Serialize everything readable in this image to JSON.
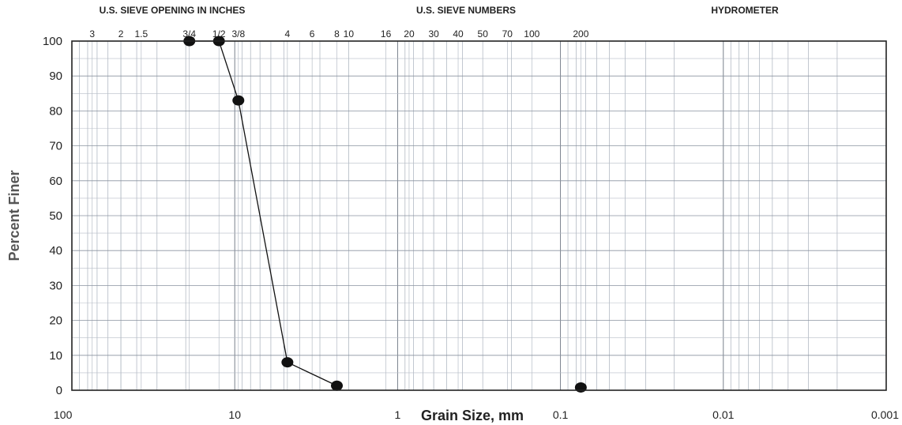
{
  "chart_data": {
    "type": "line",
    "xlabel": "Grain Size, mm",
    "ylabel": "Percent Finer",
    "xscale": "log",
    "x_reversed": true,
    "xlim": [
      100,
      0.001
    ],
    "ylim": [
      0,
      100
    ],
    "grid": true,
    "x_ticks": [
      "100",
      "10",
      "1",
      "0.1",
      "0.01",
      "0.001"
    ],
    "y_ticks": [
      "0",
      "10",
      "20",
      "30",
      "40",
      "50",
      "60",
      "70",
      "80",
      "90",
      "100"
    ],
    "top_headers": {
      "inches": "U.S. SIEVE OPENING IN INCHES",
      "numbers": "U.S. SIEVE NUMBERS",
      "hydrometer": "HYDROMETER"
    },
    "sieve_labels": [
      {
        "label": "3",
        "size": 75
      },
      {
        "label": "2",
        "size": 50
      },
      {
        "label": "1.5",
        "size": 37.5
      },
      {
        "label": "3/4",
        "size": 19
      },
      {
        "label": "1/2",
        "size": 12.5
      },
      {
        "label": "3/8",
        "size": 9.5
      },
      {
        "label": "4",
        "size": 4.75
      },
      {
        "label": "6",
        "size": 3.35
      },
      {
        "label": "8",
        "size": 2.36
      },
      {
        "label": "10",
        "size": 2.0
      },
      {
        "label": "16",
        "size": 1.18
      },
      {
        "label": "20",
        "size": 0.85
      },
      {
        "label": "30",
        "size": 0.6
      },
      {
        "label": "40",
        "size": 0.425
      },
      {
        "label": "50",
        "size": 0.3
      },
      {
        "label": "70",
        "size": 0.212
      },
      {
        "label": "100",
        "size": 0.15
      },
      {
        "label": "200",
        "size": 0.075
      }
    ],
    "series": [
      {
        "points": [
          {
            "x": 19,
            "y": 100
          },
          {
            "x": 12.5,
            "y": 100
          },
          {
            "x": 9.5,
            "y": 83
          },
          {
            "x": 4.75,
            "y": 8
          },
          {
            "x": 2.36,
            "y": 1.3
          }
        ],
        "connected": true
      },
      {
        "points": [
          {
            "x": 0.075,
            "y": 0.8
          }
        ],
        "connected": false
      }
    ]
  }
}
